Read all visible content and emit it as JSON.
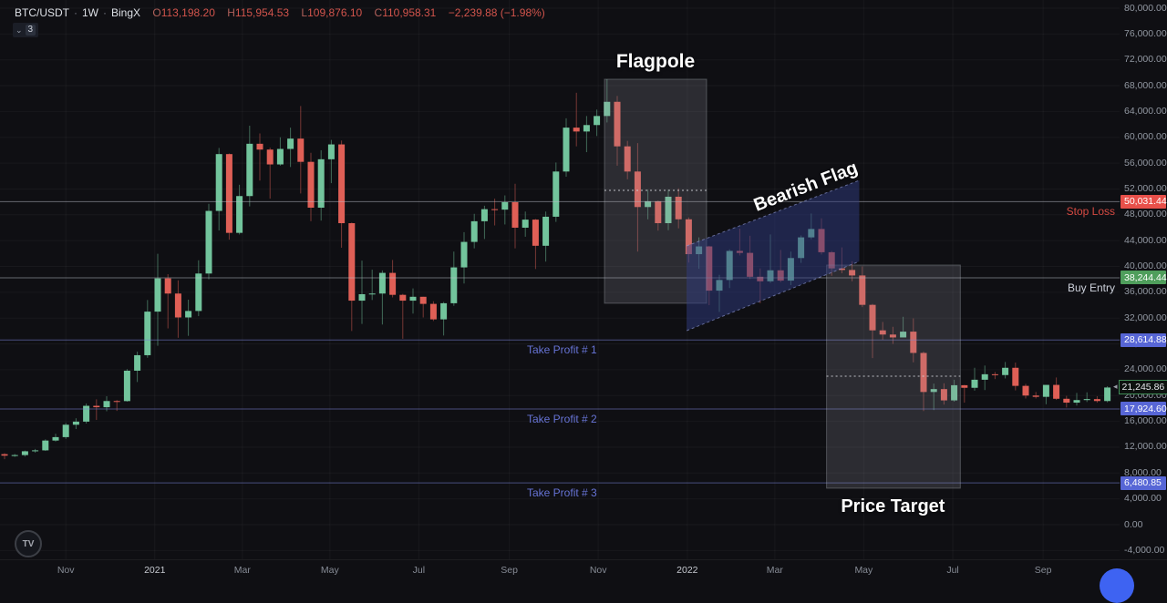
{
  "header": {
    "symbol": "BTC/USDT",
    "sep": "·",
    "interval": "1W",
    "exchange": "BingX",
    "quote": [
      {
        "k": "O",
        "v": "113,198.20"
      },
      {
        "k": "H",
        "v": "115,954.53"
      },
      {
        "k": "L",
        "v": "109,876.10"
      },
      {
        "k": "C",
        "v": "110,958.31"
      }
    ],
    "change": "−2,239.88 (−1.98%)",
    "object_count": "3"
  },
  "icons": {
    "chevron_down": "⌄",
    "arrow_left": "◂"
  },
  "watermark": {
    "text": "TV"
  },
  "colors": {
    "background": "#0f0f13",
    "up": "#72c49c",
    "down": "#df5f56",
    "axis_text": "#9298a2",
    "grid": "rgba(255,255,255,0.04)",
    "box_fill": "rgba(148,152,162,0.22)",
    "box_border": "rgba(200,204,212,0.30)",
    "channel_fill": "rgba(47,60,130,0.50)",
    "channel_border": "rgba(150,160,220,0.60)",
    "dotted": "#d8dadf",
    "accent_blue": "#5766d6",
    "accent_red": "#e8504a",
    "accent_green": "#4f9e5c"
  },
  "chart_data": {
    "type": "candlestick",
    "symbol": "BTC/USDT",
    "timeframe": "1W",
    "first_week_start": "2020-09-21",
    "y_axis": {
      "min": -4000,
      "max": 80000,
      "tick_step": 4000,
      "tick_values": [
        80000,
        76000,
        72000,
        68000,
        64000,
        60000,
        56000,
        52000,
        48000,
        44000,
        40000,
        36000,
        32000,
        28000,
        24000,
        20000,
        16000,
        12000,
        8000,
        4000,
        0,
        -4000
      ]
    },
    "x_ticks": [
      {
        "label": "Nov",
        "week": 6.0,
        "major": false
      },
      {
        "label": "2021",
        "week": 14.71,
        "major": true
      },
      {
        "label": "Mar",
        "week": 23.29,
        "major": false
      },
      {
        "label": "May",
        "week": 31.86,
        "major": false
      },
      {
        "label": "Jul",
        "week": 40.57,
        "major": false
      },
      {
        "label": "Sep",
        "week": 49.43,
        "major": false
      },
      {
        "label": "Nov",
        "week": 58.14,
        "major": false
      },
      {
        "label": "2022",
        "week": 66.86,
        "major": true
      },
      {
        "label": "Mar",
        "week": 75.43,
        "major": false
      },
      {
        "label": "May",
        "week": 84.14,
        "major": false
      },
      {
        "label": "Jul",
        "week": 92.86,
        "major": false
      },
      {
        "label": "Sep",
        "week": 101.71,
        "major": false
      }
    ],
    "candles_ohlc": [
      [
        10920,
        11080,
        10140,
        10690
      ],
      [
        10690,
        10950,
        10500,
        10780
      ],
      [
        10780,
        11480,
        10550,
        11370
      ],
      [
        11370,
        11730,
        11160,
        11510
      ],
      [
        11510,
        13220,
        11420,
        13030
      ],
      [
        13030,
        14100,
        12880,
        13560
      ],
      [
        13560,
        15750,
        13290,
        15480
      ],
      [
        15480,
        16480,
        14810,
        15960
      ],
      [
        15960,
        18770,
        15660,
        18410
      ],
      [
        18410,
        19420,
        16220,
        18190
      ],
      [
        18190,
        19900,
        17570,
        19150
      ],
      [
        19150,
        19300,
        17620,
        19140
      ],
      [
        19140,
        24100,
        19050,
        23850
      ],
      [
        23850,
        26800,
        22100,
        26250
      ],
      [
        26250,
        34800,
        25850,
        33000
      ],
      [
        33000,
        41950,
        27700,
        38150
      ],
      [
        38150,
        38800,
        30400,
        35800
      ],
      [
        35800,
        37850,
        28950,
        32100
      ],
      [
        32100,
        34850,
        29250,
        33100
      ],
      [
        33100,
        40950,
        32300,
        38900
      ],
      [
        38900,
        49700,
        38000,
        48600
      ],
      [
        48600,
        58350,
        45570,
        57400
      ],
      [
        57400,
        57500,
        44150,
        45200
      ],
      [
        45200,
        52650,
        44950,
        50900
      ],
      [
        50900,
        61800,
        49300,
        59000
      ],
      [
        59000,
        60600,
        53300,
        58100
      ],
      [
        58100,
        58400,
        50500,
        55800
      ],
      [
        55800,
        60000,
        55600,
        58200
      ],
      [
        58200,
        61500,
        55400,
        59800
      ],
      [
        59800,
        64850,
        51300,
        56200
      ],
      [
        56200,
        57600,
        47000,
        49100
      ],
      [
        49100,
        58000,
        47100,
        56600
      ],
      [
        56600,
        59600,
        52900,
        58900
      ],
      [
        58900,
        59500,
        42900,
        46700
      ],
      [
        46700,
        46800,
        30000,
        34700
      ],
      [
        34700,
        40900,
        31100,
        35700
      ],
      [
        35700,
        39500,
        34800,
        35800
      ],
      [
        35800,
        39380,
        31000,
        39000
      ],
      [
        39000,
        41000,
        35200,
        35600
      ],
      [
        35600,
        35750,
        28800,
        34700
      ],
      [
        34700,
        36600,
        32700,
        35300
      ],
      [
        35300,
        35300,
        32100,
        34200
      ],
      [
        34200,
        34600,
        31550,
        31800
      ],
      [
        31800,
        34500,
        29300,
        34300
      ],
      [
        34300,
        42300,
        33900,
        39850
      ],
      [
        39850,
        45300,
        37350,
        43800
      ],
      [
        43800,
        48150,
        42800,
        47000
      ],
      [
        47000,
        49400,
        44250,
        48870
      ],
      [
        48870,
        50500,
        46350,
        48800
      ],
      [
        48800,
        51000,
        46500,
        49950
      ],
      [
        49950,
        52800,
        42800,
        46000
      ],
      [
        46000,
        48500,
        44600,
        47250
      ],
      [
        47250,
        47350,
        39600,
        43200
      ],
      [
        43200,
        48500,
        40750,
        47700
      ],
      [
        47700,
        56100,
        46900,
        54700
      ],
      [
        54700,
        62950,
        53900,
        61500
      ],
      [
        61500,
        66900,
        58600,
        60900
      ],
      [
        60900,
        63300,
        57700,
        61900
      ],
      [
        61900,
        64300,
        60200,
        63300
      ],
      [
        63300,
        69000,
        62300,
        65500
      ],
      [
        65500,
        66400,
        55600,
        58600
      ],
      [
        58600,
        59450,
        53500,
        54700
      ],
      [
        54700,
        59100,
        42300,
        49200
      ],
      [
        49200,
        51900,
        47300,
        50100
      ],
      [
        50100,
        50200,
        45550,
        46700
      ],
      [
        46700,
        51900,
        45600,
        50800
      ],
      [
        50800,
        52100,
        45900,
        47300
      ],
      [
        47300,
        47600,
        40600,
        41900
      ],
      [
        41900,
        44500,
        39650,
        43100
      ],
      [
        43100,
        43200,
        34000,
        36250
      ],
      [
        36250,
        38700,
        32950,
        37900
      ],
      [
        37900,
        42650,
        36650,
        42400
      ],
      [
        42400,
        45850,
        41700,
        42100
      ],
      [
        42100,
        44750,
        38050,
        38400
      ],
      [
        38400,
        39700,
        34300,
        37700
      ],
      [
        37700,
        44950,
        37450,
        39400
      ],
      [
        39400,
        42550,
        37550,
        37800
      ],
      [
        37800,
        42300,
        37100,
        41300
      ],
      [
        41300,
        44800,
        40550,
        44500
      ],
      [
        44500,
        48200,
        44200,
        45800
      ],
      [
        45800,
        47450,
        41850,
        42200
      ],
      [
        42200,
        42400,
        38550,
        39700
      ],
      [
        39700,
        42950,
        38950,
        39450
      ],
      [
        39450,
        40800,
        37700,
        38600
      ],
      [
        38600,
        40000,
        33700,
        34050
      ],
      [
        34050,
        34200,
        25800,
        30100
      ],
      [
        30100,
        31400,
        28650,
        29450
      ],
      [
        29450,
        30650,
        28000,
        29000
      ],
      [
        29000,
        32200,
        29000,
        29900
      ],
      [
        29900,
        31950,
        25150,
        26600
      ],
      [
        26600,
        26800,
        17600,
        20550
      ],
      [
        20550,
        21850,
        17750,
        21000
      ],
      [
        21000,
        21900,
        18600,
        19250
      ],
      [
        19250,
        22450,
        19050,
        21600
      ],
      [
        21600,
        21650,
        18900,
        21200
      ],
      [
        21200,
        24300,
        20750,
        22450
      ],
      [
        22450,
        24650,
        20850,
        23300
      ],
      [
        23300,
        23650,
        22550,
        23175
      ],
      [
        23175,
        25200,
        22650,
        24300
      ],
      [
        24300,
        25100,
        20800,
        21500
      ],
      [
        21500,
        21800,
        19550,
        20000
      ],
      [
        20000,
        20550,
        19550,
        19800
      ],
      [
        19800,
        21650,
        18650,
        21650
      ],
      [
        21650,
        22800,
        19320,
        19500
      ],
      [
        19500,
        19950,
        18150,
        18900
      ],
      [
        18900,
        20400,
        18450,
        19300
      ],
      [
        19300,
        20500,
        19000,
        19450
      ],
      [
        19450,
        19900,
        18900,
        19150
      ],
      [
        19150,
        21450,
        18950,
        21245.86
      ]
    ],
    "annotations": {
      "hlines": [
        {
          "name": "stop-loss",
          "price": 50031.44,
          "badge": "50,031.44",
          "badge_bg": "#e8504a",
          "line": "rgba(190,194,203,0.50)",
          "label": "Stop Loss",
          "label_color": "#d64a42",
          "side": "right"
        },
        {
          "name": "buy-entry",
          "price": 38244.44,
          "badge": "38,244.44",
          "badge_bg": "#4f9e5c",
          "line": "rgba(190,194,203,0.50)",
          "label": "Buy Entry",
          "label_color": "#ccd0da",
          "side": "right"
        },
        {
          "name": "take-profit-1",
          "price": 28614.88,
          "badge": "28,614.88",
          "badge_bg": "#5766d6",
          "line": "rgba(120,132,215,0.55)",
          "label": "Take Profit # 1",
          "label_color": "#6673d4",
          "side": "left"
        },
        {
          "name": "take-profit-2",
          "price": 17924.6,
          "badge": "17,924.60",
          "badge_bg": "#5766d6",
          "line": "rgba(120,132,215,0.55)",
          "label": "Take Profit # 2",
          "label_color": "#6673d4",
          "side": "left"
        },
        {
          "name": "take-profit-3",
          "price": 6480.85,
          "badge": "6,480.85",
          "badge_bg": "#5766d6",
          "line": "rgba(120,132,215,0.55)",
          "label": "Take Profit # 3",
          "label_color": "#6673d4",
          "side": "left"
        }
      ],
      "boxes": [
        {
          "name": "flagpole-box",
          "week1": 58.75,
          "week2": 68.75,
          "price1": 69000,
          "price2": 34300,
          "dotted_price": 51780
        },
        {
          "name": "price-target-box",
          "week1": 80.5,
          "week2": 93.6,
          "price1": 40212,
          "price2": 5650,
          "dotted_price": 23000
        }
      ],
      "channel": {
        "name": "bearish-flag-channel",
        "week1": 66.8,
        "week2": 83.7,
        "top_price1": 43175,
        "top_price2": 53333,
        "bottom_price1": 30053,
        "bottom_price2": 40776
      },
      "texts": [
        {
          "name": "flagpole-label",
          "text": "Flagpole",
          "week": 63.75,
          "price": 71400,
          "size": 21,
          "rotate": 0
        },
        {
          "name": "bearish-flag-label",
          "text": "Bearish Flag",
          "week": 78.5,
          "price": 52100,
          "size": 20,
          "rotate": -21
        },
        {
          "name": "price-target-label",
          "text": "Price Target",
          "week": 87.0,
          "price": 2550,
          "size": 20,
          "rotate": 0
        }
      ],
      "price_marker": {
        "name": "last-price-marker",
        "price": 21245.86,
        "text": "21,245.86"
      }
    }
  }
}
